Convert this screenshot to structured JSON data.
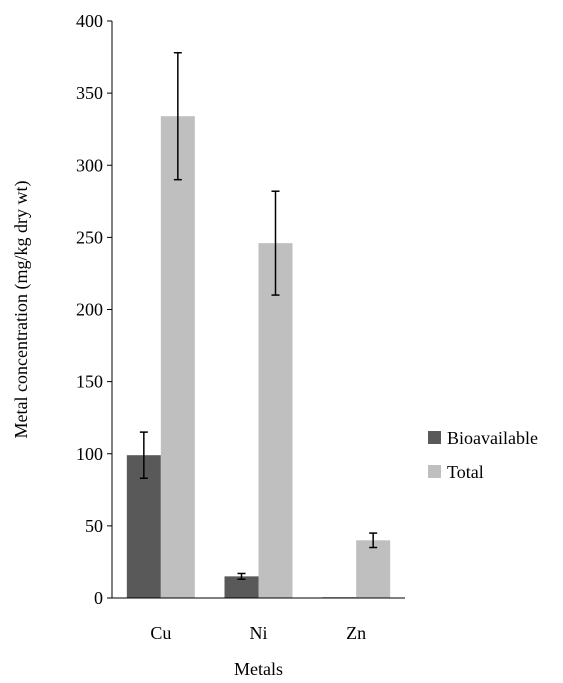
{
  "chart_data": {
    "type": "bar",
    "title": "",
    "xlabel": "Metals",
    "ylabel": "Metal concentration (mg/kg dry wt)",
    "categories": [
      "Cu",
      "Ni",
      "Zn"
    ],
    "ylim": [
      0,
      400
    ],
    "yticks": [
      0,
      50,
      100,
      150,
      200,
      250,
      300,
      350,
      400
    ],
    "grid": false,
    "legend_position": "right",
    "series": [
      {
        "name": "Bioavailable",
        "color": "#595959",
        "values": [
          99,
          15,
          0.5
        ],
        "errors": [
          16,
          2,
          0
        ]
      },
      {
        "name": "Total",
        "color": "#bfbfbf",
        "values": [
          334,
          246,
          40
        ],
        "errors": [
          44,
          36,
          5
        ]
      }
    ]
  }
}
